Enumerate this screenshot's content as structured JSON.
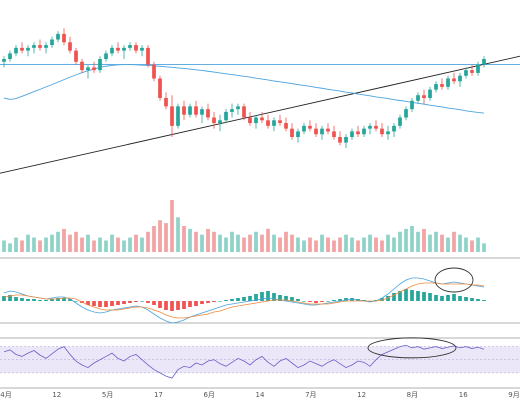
{
  "colors": {
    "up": "#26a69a",
    "down": "#ef5350",
    "volume_up": "#8fd3c8",
    "volume_down": "#f2a3a3",
    "ma_line": "#4aa3df",
    "trend_line": "#222222",
    "resistance_line": "#4aa3df",
    "macd_line": "#4aa3df",
    "signal_line": "#f08a3c",
    "rsi_line": "#6b5fc7",
    "rsi_band": "#ece7f8",
    "annotation": "#333333",
    "separator": "#999999"
  },
  "chart_data": {
    "type": "candlestick",
    "title": "",
    "x_tick_labels": [
      "4月",
      "12",
      "5月",
      "17",
      "6月",
      "14",
      "7月",
      "12",
      "8月",
      "16",
      "9月"
    ],
    "price": {
      "ylim": [
        40,
        110
      ],
      "resistance": 94,
      "trend_line": {
        "start": 55,
        "end": 97
      },
      "candles": [
        [
          95,
          97,
          93,
          96
        ],
        [
          96,
          99,
          95,
          98
        ],
        [
          98,
          101,
          97,
          100
        ],
        [
          100,
          102,
          98,
          99
        ],
        [
          99,
          101,
          97,
          100
        ],
        [
          100,
          102,
          98,
          101
        ],
        [
          101,
          103,
          99,
          100
        ],
        [
          100,
          102,
          98,
          101
        ],
        [
          101,
          104,
          100,
          103
        ],
        [
          103,
          106,
          102,
          105
        ],
        [
          105,
          107,
          101,
          102
        ],
        [
          102,
          104,
          98,
          99
        ],
        [
          99,
          100,
          94,
          95
        ],
        [
          95,
          96,
          91,
          92
        ],
        [
          92,
          94,
          89,
          93
        ],
        [
          93,
          95,
          91,
          92
        ],
        [
          92,
          97,
          91,
          96
        ],
        [
          96,
          99,
          95,
          98
        ],
        [
          98,
          101,
          97,
          100
        ],
        [
          100,
          102,
          98,
          99
        ],
        [
          99,
          101,
          96,
          100
        ],
        [
          100,
          102,
          99,
          101
        ],
        [
          101,
          102,
          98,
          99
        ],
        [
          99,
          101,
          97,
          100
        ],
        [
          100,
          101,
          93,
          94
        ],
        [
          94,
          95,
          88,
          89
        ],
        [
          89,
          90,
          81,
          82
        ],
        [
          82,
          84,
          78,
          79
        ],
        [
          79,
          83,
          68,
          72
        ],
        [
          72,
          80,
          71,
          79
        ],
        [
          79,
          81,
          74,
          76
        ],
        [
          76,
          80,
          75,
          79
        ],
        [
          79,
          81,
          75,
          76
        ],
        [
          76,
          79,
          73,
          78
        ],
        [
          78,
          80,
          74,
          75
        ],
        [
          75,
          77,
          71,
          73
        ],
        [
          73,
          76,
          70,
          74
        ],
        [
          74,
          78,
          73,
          77
        ],
        [
          77,
          80,
          75,
          78
        ],
        [
          78,
          80,
          76,
          79
        ],
        [
          79,
          80,
          74,
          75
        ],
        [
          75,
          77,
          72,
          73
        ],
        [
          73,
          76,
          71,
          75
        ],
        [
          75,
          77,
          73,
          74
        ],
        [
          74,
          76,
          71,
          72
        ],
        [
          72,
          75,
          70,
          74
        ],
        [
          74,
          76,
          72,
          73
        ],
        [
          73,
          75,
          70,
          71
        ],
        [
          71,
          73,
          67,
          68
        ],
        [
          68,
          71,
          66,
          70
        ],
        [
          70,
          73,
          69,
          72
        ],
        [
          72,
          74,
          70,
          71
        ],
        [
          71,
          73,
          68,
          69
        ],
        [
          69,
          72,
          67,
          71
        ],
        [
          71,
          73,
          69,
          70
        ],
        [
          70,
          72,
          67,
          68
        ],
        [
          68,
          70,
          65,
          66
        ],
        [
          66,
          69,
          64,
          68
        ],
        [
          68,
          71,
          67,
          70
        ],
        [
          70,
          72,
          68,
          69
        ],
        [
          69,
          72,
          68,
          71
        ],
        [
          71,
          73,
          69,
          72
        ],
        [
          72,
          74,
          70,
          71
        ],
        [
          71,
          73,
          68,
          69
        ],
        [
          69,
          72,
          67,
          70
        ],
        [
          70,
          73,
          68,
          72
        ],
        [
          72,
          76,
          71,
          75
        ],
        [
          75,
          79,
          74,
          78
        ],
        [
          78,
          82,
          77,
          81
        ],
        [
          81,
          84,
          80,
          83
        ],
        [
          83,
          85,
          80,
          82
        ],
        [
          82,
          86,
          81,
          85
        ],
        [
          85,
          88,
          84,
          87
        ],
        [
          87,
          89,
          85,
          86
        ],
        [
          86,
          90,
          85,
          89
        ],
        [
          89,
          91,
          87,
          88
        ],
        [
          88,
          91,
          86,
          90
        ],
        [
          90,
          93,
          89,
          92
        ],
        [
          92,
          94,
          90,
          91
        ],
        [
          91,
          95,
          90,
          94
        ],
        [
          94,
          97,
          93,
          96
        ]
      ],
      "ma": [
        82,
        81.5,
        81.8,
        82.6,
        83.4,
        84.3,
        85.1,
        86,
        86.8,
        87.7,
        88.6,
        89.5,
        90.3,
        91.1,
        91.8,
        92.4,
        93,
        93.4,
        93.7,
        93.9,
        94,
        94,
        93.9,
        93.8,
        93.7,
        93.5,
        93.4,
        93.2,
        93,
        92.8,
        92.6,
        92.4,
        92.1,
        91.9,
        91.6,
        91.3,
        91,
        90.7,
        90.4,
        90.1,
        89.8,
        89.5,
        89.1,
        88.8,
        88.5,
        88.1,
        87.8,
        87.5,
        87.2,
        86.8,
        86.5,
        86.2,
        85.8,
        85.5,
        85.1,
        84.8,
        84.5,
        84.1,
        83.8,
        83.4,
        83.1,
        82.8,
        82.4,
        82.1,
        81.8,
        81.4,
        81.1,
        80.8,
        80.4,
        80.1,
        79.8,
        79.4,
        79.1,
        78.8,
        78.4,
        78.1,
        77.8,
        77.4,
        77.1,
        76.8,
        76.6
      ]
    },
    "volume": [
      4,
      3,
      5,
      4,
      6,
      5,
      4,
      5,
      6,
      7,
      8,
      6,
      7,
      5,
      6,
      4,
      5,
      4,
      6,
      5,
      4,
      5,
      6,
      5,
      7,
      9,
      11,
      10,
      18,
      12,
      9,
      8,
      7,
      6,
      8,
      7,
      6,
      5,
      7,
      6,
      5,
      6,
      7,
      6,
      8,
      6,
      5,
      7,
      6,
      5,
      4,
      5,
      4,
      6,
      5,
      4,
      5,
      6,
      5,
      4,
      5,
      6,
      5,
      4,
      6,
      5,
      7,
      8,
      9,
      7,
      8,
      6,
      7,
      6,
      5,
      7,
      6,
      5,
      4,
      5,
      3
    ],
    "macd": {
      "histogram": [
        0.5,
        0.6,
        0.4,
        0.3,
        0.2,
        0.2,
        0.1,
        0.1,
        0.2,
        0.3,
        0.3,
        0.2,
        0,
        -0.2,
        -0.4,
        -0.5,
        -0.6,
        -0.6,
        -0.5,
        -0.4,
        -0.3,
        -0.2,
        -0.1,
        0,
        -0.2,
        -0.4,
        -0.7,
        -0.9,
        -1,
        -0.9,
        -0.8,
        -0.6,
        -0.5,
        -0.3,
        -0.2,
        -0.1,
        0,
        0.1,
        0.2,
        0.3,
        0.4,
        0.5,
        0.7,
        0.9,
        1,
        0.8,
        0.6,
        0.5,
        0.4,
        0.2,
        0,
        -0.1,
        -0.2,
        -0.1,
        0,
        0.1,
        0.2,
        0.3,
        0.3,
        0.2,
        0.1,
        0,
        0.1,
        0.3,
        0.5,
        0.8,
        1,
        1.2,
        1.1,
        1,
        0.9,
        0.8,
        0.6,
        0.5,
        0.6,
        0.7,
        0.5,
        0.4,
        0.3,
        0.2,
        0.1
      ],
      "macd": [
        0.8,
        1,
        0.9,
        0.7,
        0.5,
        0.4,
        0.3,
        0.2,
        0.3,
        0.4,
        0.4,
        0.2,
        -0.2,
        -0.6,
        -0.9,
        -1.1,
        -1.2,
        -1.1,
        -0.9,
        -0.8,
        -0.7,
        -0.6,
        -0.5,
        -0.6,
        -0.9,
        -1.3,
        -1.7,
        -2,
        -2.2,
        -2.1,
        -1.9,
        -1.6,
        -1.4,
        -1.2,
        -1,
        -0.8,
        -0.6,
        -0.4,
        -0.3,
        -0.2,
        -0.1,
        0,
        0.1,
        0.2,
        0.3,
        0.2,
        0.1,
        0,
        -0.1,
        -0.2,
        -0.3,
        -0.4,
        -0.4,
        -0.3,
        -0.2,
        -0.1,
        0,
        0.1,
        0.2,
        0.1,
        0,
        -0.1,
        0,
        0.3,
        0.7,
        1.2,
        1.7,
        2.1,
        2.3,
        2.3,
        2.2,
        2,
        1.8,
        1.7,
        1.8,
        1.9,
        1.8,
        1.7,
        1.6,
        1.5,
        1.4
      ],
      "signal": [
        0.4,
        0.5,
        0.6,
        0.6,
        0.5,
        0.4,
        0.3,
        0.2,
        0.2,
        0.2,
        0.3,
        0.3,
        0.2,
        -0.1,
        -0.4,
        -0.6,
        -0.8,
        -0.9,
        -0.9,
        -0.9,
        -0.8,
        -0.7,
        -0.6,
        -0.6,
        -0.7,
        -0.9,
        -1.1,
        -1.4,
        -1.6,
        -1.7,
        -1.7,
        -1.6,
        -1.5,
        -1.4,
        -1.3,
        -1.1,
        -1,
        -0.8,
        -0.6,
        -0.5,
        -0.4,
        -0.3,
        -0.2,
        -0.1,
        0,
        0.1,
        0.1,
        0.1,
        0,
        -0.1,
        -0.2,
        -0.3,
        -0.3,
        -0.3,
        -0.3,
        -0.2,
        -0.1,
        0,
        0,
        0,
        0,
        0,
        0,
        0.1,
        0.3,
        0.6,
        0.9,
        1.2,
        1.5,
        1.7,
        1.8,
        1.8,
        1.8,
        1.7,
        1.7,
        1.7,
        1.7,
        1.7,
        1.6,
        1.6,
        1.5
      ]
    },
    "rsi": [
      62,
      65,
      58,
      55,
      60,
      64,
      57,
      52,
      59,
      66,
      70,
      58,
      48,
      42,
      38,
      45,
      50,
      55,
      60,
      52,
      48,
      55,
      58,
      50,
      42,
      35,
      30,
      25,
      22,
      35,
      40,
      38,
      45,
      42,
      48,
      50,
      44,
      40,
      46,
      52,
      48,
      42,
      50,
      55,
      46,
      40,
      48,
      52,
      45,
      38,
      42,
      48,
      44,
      40,
      46,
      50,
      44,
      38,
      42,
      48,
      46,
      40,
      50,
      58,
      62,
      66,
      70,
      72,
      68,
      70,
      66,
      68,
      70,
      67,
      69,
      71,
      68,
      70,
      67,
      69,
      66
    ]
  }
}
